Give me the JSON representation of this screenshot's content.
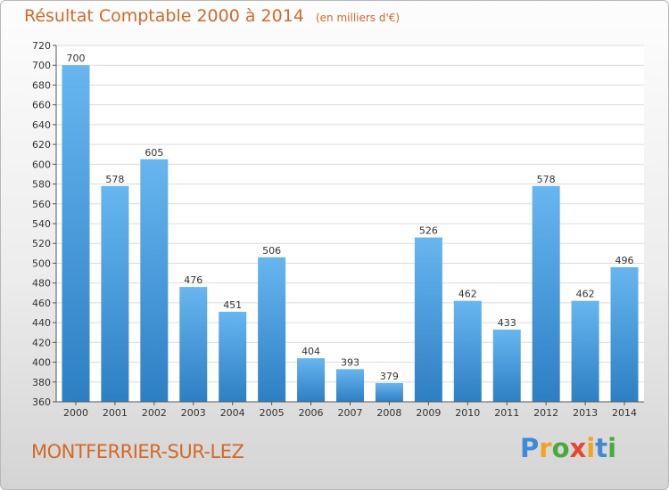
{
  "title": "Résultat Comptable 2000 à 2014",
  "subtitle": "(en milliers d'€)",
  "commune": "MONTFERRIER-SUR-LEZ",
  "logo": {
    "letters": [
      "P",
      "r",
      "o",
      "x",
      "i",
      "t",
      "i"
    ],
    "colors": [
      "#3e8ad6",
      "#f2a323",
      "#4aa83e",
      "#e8442f",
      "#f2a323",
      "#3e8ad6",
      "#4aa83e"
    ]
  },
  "colors": {
    "title": "#d2692a",
    "bar_top": "#67b6f0",
    "bar_bottom": "#2d7fc4",
    "grid": "#dcdcdc"
  },
  "chart_data": {
    "type": "bar",
    "title": "Résultat Comptable 2000 à 2014",
    "subtitle": "(en milliers d'€)",
    "xlabel": "",
    "ylabel": "",
    "categories": [
      "2000",
      "2001",
      "2002",
      "2003",
      "2004",
      "2005",
      "2006",
      "2007",
      "2008",
      "2009",
      "2010",
      "2011",
      "2012",
      "2013",
      "2014"
    ],
    "values": [
      700,
      578,
      605,
      476,
      451,
      506,
      404,
      393,
      379,
      526,
      462,
      433,
      578,
      462,
      496
    ],
    "ylim": [
      360,
      720
    ],
    "yticks": [
      360,
      380,
      400,
      420,
      440,
      460,
      480,
      500,
      520,
      540,
      560,
      580,
      600,
      620,
      640,
      660,
      680,
      700,
      720
    ],
    "grid": true
  }
}
